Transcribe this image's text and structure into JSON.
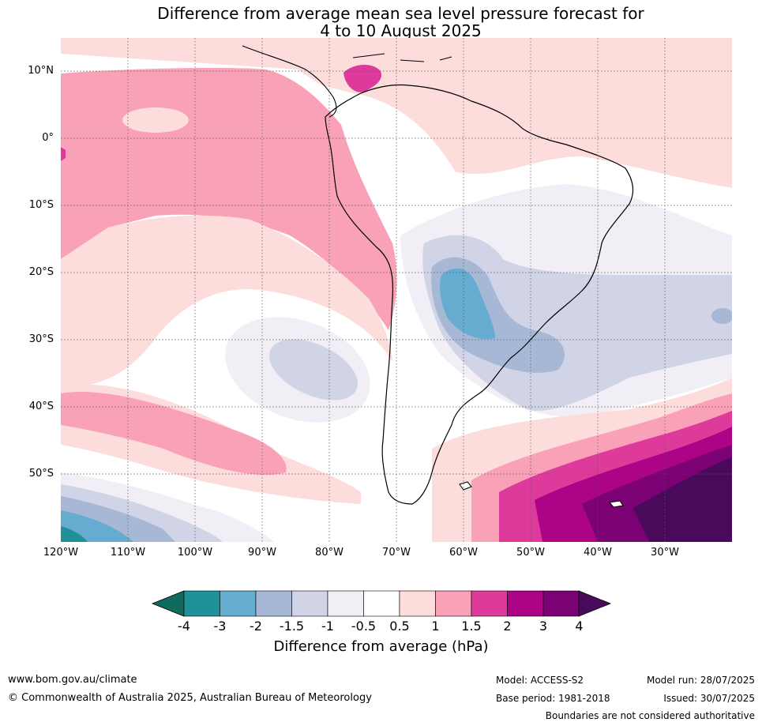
{
  "title_line1": "Difference from average mean sea level pressure forecast for",
  "title_line2": "4 to 10 August 2025",
  "latitude_labels": [
    {
      "label": "10°N",
      "value": 10
    },
    {
      "label": "0°",
      "value": 0
    },
    {
      "label": "10°S",
      "value": -10
    },
    {
      "label": "20°S",
      "value": -20
    },
    {
      "label": "30°S",
      "value": -30
    },
    {
      "label": "40°S",
      "value": -40
    },
    {
      "label": "50°S",
      "value": -50
    }
  ],
  "longitude_labels": [
    {
      "label": "120°W",
      "value": -120
    },
    {
      "label": "110°W",
      "value": -110
    },
    {
      "label": "100°W",
      "value": -100
    },
    {
      "label": "90°W",
      "value": -90
    },
    {
      "label": "80°W",
      "value": -80
    },
    {
      "label": "70°W",
      "value": -70
    },
    {
      "label": "60°W",
      "value": -60
    },
    {
      "label": "50°W",
      "value": -50
    },
    {
      "label": "40°W",
      "value": -40
    },
    {
      "label": "30°W",
      "value": -30
    }
  ],
  "map_extent": {
    "lon_min": -120,
    "lon_max": -20,
    "lat_min": -60,
    "lat_max": 15
  },
  "colorbar": {
    "ticks": [
      "-4",
      "-3",
      "-2",
      "-1.5",
      "-1",
      "-0.5",
      "0.5",
      "1",
      "1.5",
      "2",
      "3",
      "4"
    ],
    "under_color": "#0e6b5e",
    "over_color": "#4a0a5c",
    "colors": [
      "#1e9199",
      "#66abd0",
      "#a7b8d6",
      "#d1d3e6",
      "#f1eff5",
      "#ffffff",
      "#fddcdc",
      "#f9a1b7",
      "#dd3a9c",
      "#ad0386",
      "#7b0175"
    ],
    "label": "Difference from average (hPa)"
  },
  "footer": {
    "website": "www.bom.gov.au/climate",
    "copyright": "© Commonwealth of Australia 2025, Australian Bureau of Meteorology",
    "model": "Model: ACCESS-S2",
    "base_period": "Base period: 1981-2018",
    "model_run": "Model run: 28/07/2025",
    "issued": "Issued: 30/07/2025",
    "disclaimer": "Boundaries are not considered authoritative"
  }
}
